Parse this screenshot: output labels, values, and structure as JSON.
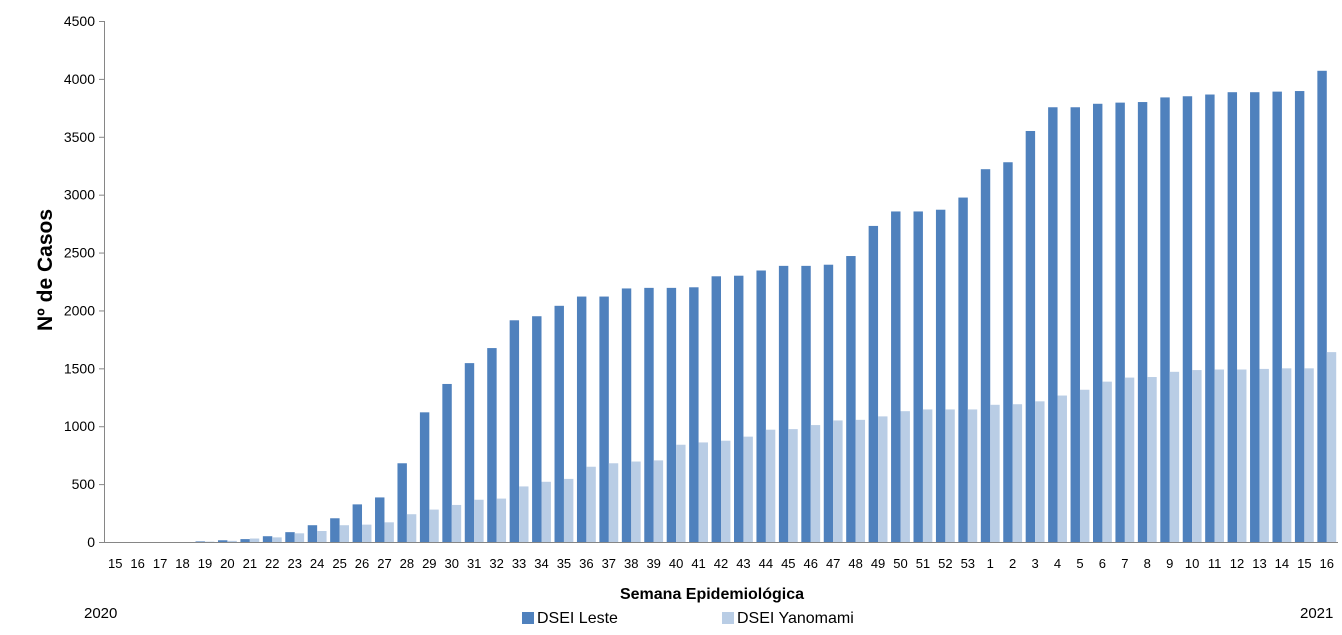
{
  "chart_data": {
    "type": "bar",
    "xlabel": "Semana Epidemiológica",
    "ylabel": "Nº de Casos",
    "ylim": [
      0,
      4500
    ],
    "yticks": [
      0,
      500,
      1000,
      1500,
      2000,
      2500,
      3000,
      3500,
      4000,
      4500
    ],
    "grid": false,
    "legend_position": "bottom",
    "year_labels": {
      "start": "2020",
      "end": "2021"
    },
    "categories": [
      "15",
      "16",
      "17",
      "18",
      "19",
      "20",
      "21",
      "22",
      "23",
      "24",
      "25",
      "26",
      "27",
      "28",
      "29",
      "30",
      "31",
      "32",
      "33",
      "34",
      "35",
      "36",
      "37",
      "38",
      "39",
      "40",
      "41",
      "42",
      "43",
      "44",
      "45",
      "46",
      "47",
      "48",
      "49",
      "50",
      "51",
      "52",
      "53",
      "1",
      "2",
      "3",
      "4",
      "5",
      "6",
      "7",
      "8",
      "9",
      "10",
      "11",
      "12",
      "13",
      "14",
      "15",
      "16"
    ],
    "series": [
      {
        "name": "DSEI Leste",
        "color": "#4f81bd",
        "values": [
          0,
          0,
          0,
          0,
          5,
          15,
          25,
          50,
          85,
          145,
          205,
          325,
          385,
          680,
          1120,
          1365,
          1545,
          1675,
          1915,
          1950,
          2040,
          2120,
          2120,
          2190,
          2195,
          2195,
          2200,
          2295,
          2300,
          2345,
          2385,
          2385,
          2395,
          2470,
          2730,
          2855,
          2855,
          2870,
          2975,
          3220,
          3280,
          3550,
          3755,
          3755,
          3785,
          3795,
          3800,
          3840,
          3850,
          3865,
          3885,
          3885,
          3890,
          3895,
          4070
        ]
      },
      {
        "name": "DSEI Yanomami",
        "color": "#b9cde5",
        "values": [
          0,
          0,
          0,
          0,
          3,
          10,
          30,
          40,
          75,
          95,
          145,
          150,
          170,
          240,
          280,
          320,
          365,
          375,
          480,
          520,
          545,
          650,
          680,
          695,
          705,
          840,
          860,
          875,
          910,
          970,
          975,
          1010,
          1050,
          1055,
          1085,
          1130,
          1145,
          1145,
          1145,
          1185,
          1190,
          1215,
          1265,
          1315,
          1385,
          1420,
          1425,
          1470,
          1485,
          1490,
          1490,
          1495,
          1500,
          1500,
          1640
        ]
      }
    ]
  }
}
